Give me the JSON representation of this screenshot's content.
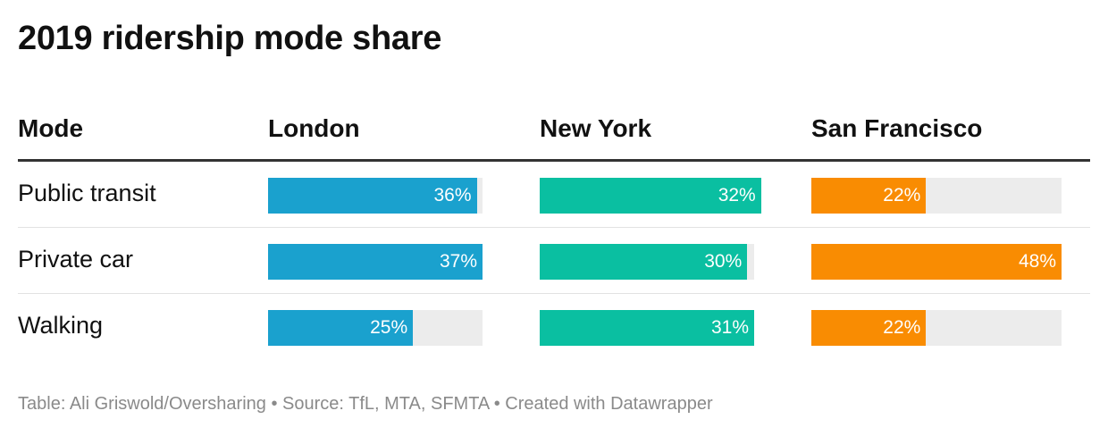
{
  "title": "2019 ridership mode share",
  "footer": "Table: Ali Griswold/Oversharing • Source: TfL, MTA, SFMTA • Created with Datawrapper",
  "chart_data": {
    "type": "table",
    "title": "2019 ridership mode share",
    "columns": [
      "Mode",
      "London",
      "New York",
      "San Francisco"
    ],
    "series_colors": {
      "London": "#1aa1ce",
      "New York": "#0abfa1",
      "San Francisco": "#f98c02"
    },
    "rows": [
      {
        "mode": "Public transit",
        "values": [
          36,
          32,
          22
        ],
        "labels": [
          "36%",
          "32%",
          "22%"
        ]
      },
      {
        "mode": "Private car",
        "values": [
          37,
          30,
          48
        ],
        "labels": [
          "37%",
          "30%",
          "48%"
        ]
      },
      {
        "mode": "Walking",
        "values": [
          25,
          31,
          22
        ],
        "labels": [
          "25%",
          "31%",
          "22%"
        ]
      }
    ],
    "scale_max": [
      37,
      31,
      48
    ]
  }
}
